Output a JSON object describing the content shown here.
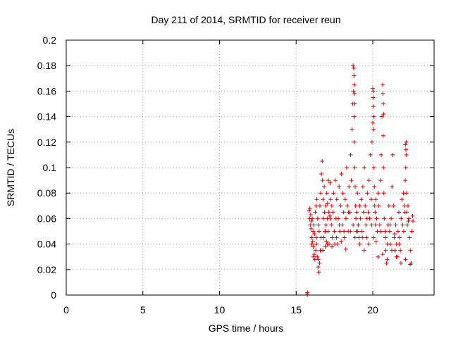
{
  "chart_data": {
    "type": "scatter",
    "title": "Day 211 of 2014, SRMTID for receiver reun",
    "xlabel": "GPS time / hours",
    "ylabel": "SRMTID / TECUs",
    "xlim": [
      0,
      24
    ],
    "ylim": [
      0,
      0.2
    ],
    "xticks": [
      0,
      5,
      10,
      15,
      20
    ],
    "xtick_labels": [
      "0",
      "5",
      "10",
      "15",
      "20"
    ],
    "yticks": [
      0,
      0.02,
      0.04,
      0.06,
      0.08,
      0.1,
      0.12,
      0.14,
      0.16,
      0.18,
      0.2
    ],
    "ytick_labels": [
      "0",
      "0.02",
      "0.04",
      "0.06",
      "0.08",
      "0.1",
      "0.12",
      "0.14",
      "0.16",
      "0.18",
      "0.2"
    ],
    "grid": true,
    "marker": "+",
    "series": [
      {
        "name": "SRMTID",
        "color": "#e00000",
        "x": [
          15.72,
          15.73,
          15.74,
          15.85,
          15.88,
          15.9,
          15.92,
          15.95,
          15.97,
          16.0,
          16.02,
          16.05,
          16.08,
          16.1,
          16.12,
          16.15,
          16.18,
          16.2,
          16.22,
          16.25,
          16.28,
          16.3,
          16.33,
          16.35,
          16.38,
          16.4,
          16.43,
          16.45,
          16.48,
          16.5,
          16.53,
          16.55,
          16.58,
          16.6,
          16.63,
          16.65,
          16.7,
          16.72,
          16.75,
          16.78,
          16.8,
          16.83,
          16.85,
          16.88,
          16.9,
          16.92,
          16.95,
          16.98,
          17.0,
          17.03,
          17.05,
          17.08,
          17.1,
          17.13,
          17.15,
          17.2,
          17.22,
          17.25,
          17.3,
          17.33,
          17.35,
          17.4,
          17.45,
          17.5,
          17.55,
          17.6,
          17.65,
          17.7,
          17.75,
          17.8,
          17.85,
          17.9,
          17.95,
          18.0,
          18.05,
          18.1,
          18.15,
          18.2,
          18.25,
          18.3,
          18.35,
          18.4,
          18.45,
          18.5,
          18.55,
          18.6,
          18.65,
          18.7,
          18.72,
          18.75,
          18.78,
          18.8,
          18.82,
          18.85,
          18.88,
          18.9,
          18.92,
          18.95,
          19.0,
          19.05,
          19.1,
          19.15,
          19.2,
          19.25,
          19.3,
          19.35,
          19.4,
          19.45,
          19.5,
          19.55,
          19.6,
          19.65,
          19.7,
          19.75,
          19.8,
          19.85,
          19.9,
          19.95,
          20.0,
          20.02,
          20.05,
          20.08,
          20.1,
          20.12,
          20.15,
          20.18,
          20.2,
          20.25,
          20.3,
          20.35,
          20.4,
          20.45,
          20.5,
          20.55,
          20.6,
          20.65,
          20.68,
          20.7,
          20.72,
          20.75,
          20.8,
          20.85,
          20.9,
          20.95,
          21.0,
          21.05,
          21.1,
          21.15,
          21.2,
          21.25,
          21.3,
          21.35,
          21.4,
          21.45,
          21.5,
          21.55,
          21.6,
          21.65,
          21.7,
          21.75,
          21.8,
          21.85,
          21.9,
          21.95,
          22.0,
          22.05,
          22.1,
          22.12,
          22.15,
          22.18,
          22.2,
          22.22,
          22.25,
          22.3,
          22.35,
          22.4,
          22.45,
          22.5,
          22.55,
          22.6,
          22.62,
          16.02,
          16.32,
          16.62,
          16.92,
          17.22,
          17.52,
          17.82,
          18.12,
          18.42,
          18.72,
          19.02,
          19.32,
          19.62,
          19.92,
          20.22,
          20.52,
          20.82,
          21.12,
          21.42,
          21.72,
          22.02,
          22.32,
          16.14,
          16.44,
          16.74,
          17.04,
          17.34,
          17.64,
          17.94,
          18.24,
          18.54,
          18.84,
          19.14,
          19.44,
          19.74,
          20.04,
          20.34,
          20.64,
          20.94,
          21.24,
          21.54,
          21.84,
          22.14,
          22.44,
          18.76,
          18.77,
          18.79,
          18.81,
          18.83,
          20.0,
          20.02,
          20.04,
          20.06,
          20.66,
          20.69,
          20.71,
          22.13,
          22.16,
          22.19
        ],
        "y": [
          0.0,
          0.001,
          0.002,
          0.066,
          0.06,
          0.068,
          0.055,
          0.063,
          0.052,
          0.058,
          0.045,
          0.06,
          0.042,
          0.05,
          0.038,
          0.055,
          0.032,
          0.048,
          0.028,
          0.065,
          0.035,
          0.07,
          0.04,
          0.075,
          0.03,
          0.06,
          0.022,
          0.055,
          0.018,
          0.05,
          0.025,
          0.07,
          0.035,
          0.08,
          0.045,
          0.095,
          0.105,
          0.09,
          0.075,
          0.06,
          0.045,
          0.085,
          0.065,
          0.05,
          0.038,
          0.07,
          0.055,
          0.042,
          0.08,
          0.06,
          0.072,
          0.05,
          0.09,
          0.065,
          0.04,
          0.062,
          0.088,
          0.075,
          0.055,
          0.07,
          0.045,
          0.065,
          0.08,
          0.05,
          0.09,
          0.06,
          0.075,
          0.04,
          0.06,
          0.085,
          0.05,
          0.07,
          0.095,
          0.055,
          0.08,
          0.065,
          0.045,
          0.075,
          0.06,
          0.1,
          0.07,
          0.05,
          0.085,
          0.065,
          0.11,
          0.09,
          0.13,
          0.15,
          0.18,
          0.16,
          0.14,
          0.12,
          0.1,
          0.085,
          0.07,
          0.06,
          0.05,
          0.065,
          0.08,
          0.055,
          0.045,
          0.07,
          0.06,
          0.075,
          0.05,
          0.085,
          0.065,
          0.1,
          0.07,
          0.055,
          0.045,
          0.08,
          0.065,
          0.09,
          0.06,
          0.11,
          0.075,
          0.12,
          0.135,
          0.16,
          0.13,
          0.1,
          0.085,
          0.07,
          0.065,
          0.055,
          0.075,
          0.06,
          0.05,
          0.08,
          0.07,
          0.055,
          0.09,
          0.11,
          0.14,
          0.165,
          0.125,
          0.1,
          0.08,
          0.06,
          0.05,
          0.035,
          0.025,
          0.04,
          0.055,
          0.07,
          0.05,
          0.04,
          0.06,
          0.085,
          0.11,
          0.07,
          0.045,
          0.035,
          0.055,
          0.04,
          0.03,
          0.05,
          0.065,
          0.045,
          0.035,
          0.06,
          0.075,
          0.055,
          0.08,
          0.07,
          0.065,
          0.09,
          0.1,
          0.12,
          0.08,
          0.065,
          0.055,
          0.07,
          0.06,
          0.045,
          0.035,
          0.025,
          0.05,
          0.062,
          0.058,
          0.04,
          0.045,
          0.035,
          0.05,
          0.06,
          0.04,
          0.055,
          0.05,
          0.065,
          0.055,
          0.05,
          0.045,
          0.06,
          0.055,
          0.042,
          0.05,
          0.045,
          0.055,
          0.048,
          0.04,
          0.05,
          0.058,
          0.03,
          0.028,
          0.035,
          0.04,
          0.038,
          0.045,
          0.042,
          0.036,
          0.05,
          0.045,
          0.04,
          0.035,
          0.04,
          0.045,
          0.03,
          0.032,
          0.028,
          0.035,
          0.03,
          0.025,
          0.028,
          0.024,
          0.178,
          0.172,
          0.165,
          0.158,
          0.15,
          0.162,
          0.155,
          0.148,
          0.14,
          0.158,
          0.15,
          0.142,
          0.118,
          0.114,
          0.11
        ]
      }
    ]
  }
}
